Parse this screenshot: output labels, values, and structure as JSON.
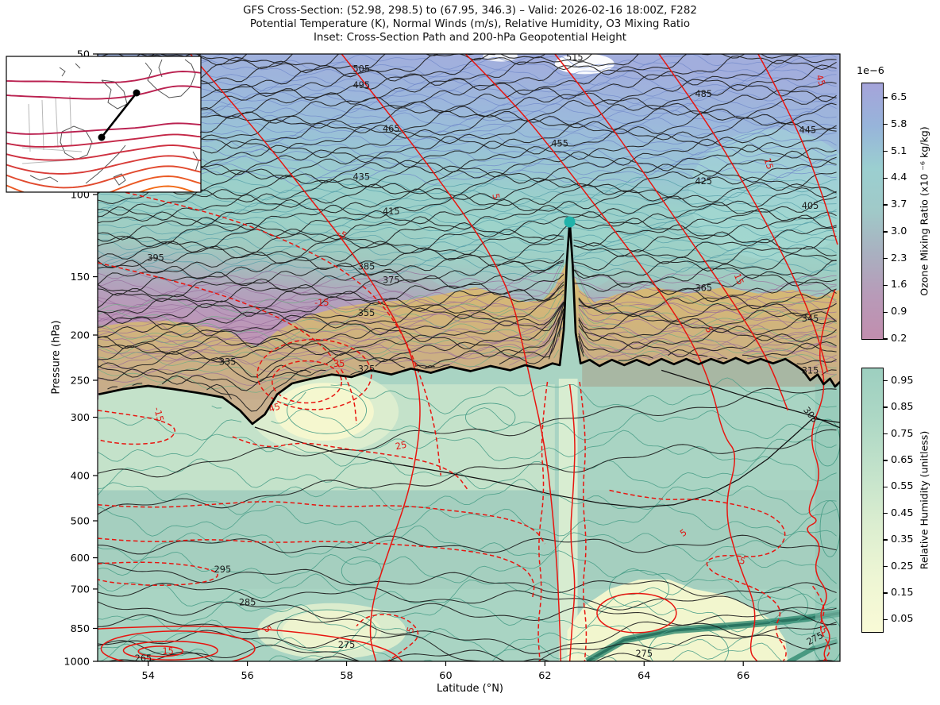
{
  "title": {
    "line1": "GFS Cross-Section: (52.98, 298.5) to (67.95, 346.3) – Valid: 2026-02-16 18:00Z, F282",
    "line2": "Potential Temperature (K), Normal Winds (m/s), Relative Humidity, O3 Mixing Ratio",
    "line3": "Inset: Cross-Section Path and 200-hPa Geopotential Height"
  },
  "axes": {
    "x_label": "Latitude (°N)",
    "y_label": "Pressure (hPa)",
    "x_ticks": [
      54,
      56,
      58,
      60,
      62,
      64,
      66
    ],
    "y_ticks": [
      50,
      100,
      150,
      200,
      250,
      300,
      400,
      500,
      600,
      700,
      850,
      1000
    ],
    "x_range": [
      52.98,
      67.95
    ],
    "y_range": [
      50,
      1000
    ],
    "y_scale": "log"
  },
  "colorbars": {
    "ozone": {
      "label": "Ozone Mixing Ratio (x10 ⁻⁶ kg/kg)",
      "offset_label": "1e−6",
      "tick_labels": [
        "6.5",
        "5.8",
        "5.1",
        "4.4",
        "3.7",
        "3.0",
        "2.3",
        "1.6",
        "0.9",
        "0.2"
      ],
      "gradient": [
        "#a5a4da",
        "#97b4da",
        "#9bcfd0",
        "#a0c9c8",
        "#a9b0c0",
        "#b89ab8",
        "#c18eae"
      ]
    },
    "rh": {
      "label": "Relative Humidity (unitless)",
      "tick_labels": [
        "0.95",
        "0.85",
        "0.75",
        "0.65",
        "0.55",
        "0.45",
        "0.35",
        "0.25",
        "0.15",
        "0.05"
      ],
      "gradient": [
        "#9dcfc0",
        "#aed8c5",
        "#c4e3cb",
        "#dceed0",
        "#eef6d4",
        "#f9fad6"
      ]
    }
  },
  "style_colors": {
    "theta_contour": "#1c1c1c",
    "wind_contour": "#e8150f",
    "rh_contour": "#4a9e88",
    "ozone_thin_blue": "#6d86c8",
    "ozone_thin_teal": "#4f9ba6",
    "ozone_thin_purple": "#97699b",
    "tan_green_thin": "#6fae85",
    "tropopause": "#000000",
    "marker": "#20b2aa",
    "strat_stops": [
      "#a2aedd",
      "#9cb8dc",
      "#99c3d6",
      "#9bd0cb",
      "#9dd1c7",
      "#a0cac0",
      "#a9b3bc",
      "#b2a2bc",
      "#bb98b9",
      "#c094b3",
      "#c18fb0"
    ],
    "strat_fracs": [
      0,
      0.16,
      0.28,
      0.41,
      0.52,
      0.61,
      0.69,
      0.74,
      0.82,
      0.91,
      1
    ],
    "tan_top": "#d7b873",
    "tan_bottom": "#c6ad8a",
    "tropo_base": "#a9d4c3",
    "dry_yellow": "#f6f8cf",
    "light_green": "#dff0d2",
    "dark_streak": "#2f8a70",
    "inset_contours": [
      "#FFB300",
      "#FFA000",
      "#FF8C00",
      "#F97B0C",
      "#F26A18",
      "#EA5924",
      "#E14A2E",
      "#D83C38",
      "#CE3040",
      "#C42747",
      "#BA2150"
    ],
    "coast": "#555555",
    "inner_borders": "#b8b8b8"
  },
  "chart_data": {
    "type": "contour-cross-section",
    "title": "GFS Cross-Section: (52.98, 298.5) to (67.95, 346.3) – Valid: 2026-02-16 18:00Z, F282",
    "x": {
      "label": "Latitude (°N)",
      "min": 52.98,
      "max": 67.95,
      "ticks": [
        54,
        56,
        58,
        60,
        62,
        64,
        66
      ]
    },
    "y": {
      "label": "Pressure (hPa)",
      "scale": "log",
      "min": 50,
      "max": 1000,
      "ticks": [
        50,
        100,
        150,
        200,
        250,
        300,
        400,
        500,
        600,
        700,
        850,
        1000
      ]
    },
    "fields": [
      {
        "name": "Potential Temperature",
        "units": "K",
        "style": "black contours",
        "interval": 5
      },
      {
        "name": "Normal Winds",
        "units": "m/s",
        "style": "red contours, negative dashed"
      },
      {
        "name": "Relative Humidity",
        "units": "unitless",
        "style": "filled yellow-green",
        "range": [
          0.05,
          0.95
        ]
      },
      {
        "name": "O3 Mixing Ratio",
        "units": "kg/kg",
        "style": "filled pink-teal-violet",
        "range": [
          2e-07,
          6.5e-06
        ]
      }
    ],
    "theta_labels": [
      {
        "t": "515",
        "lat": 62.6,
        "p": 51
      },
      {
        "t": "505",
        "lat": 58.3,
        "p": 54
      },
      {
        "t": "495",
        "lat": 58.3,
        "p": 58.5
      },
      {
        "t": "485",
        "lat": 65.2,
        "p": 61
      },
      {
        "t": "465",
        "lat": 58.9,
        "p": 72.5
      },
      {
        "t": "455",
        "lat": 62.3,
        "p": 78
      },
      {
        "t": "445",
        "lat": 67.3,
        "p": 73
      },
      {
        "t": "435",
        "lat": 58.3,
        "p": 92
      },
      {
        "t": "425",
        "lat": 65.2,
        "p": 94
      },
      {
        "t": "415",
        "lat": 58.9,
        "p": 109
      },
      {
        "t": "405",
        "lat": 67.35,
        "p": 106
      },
      {
        "t": "395",
        "lat": 54.15,
        "p": 137
      },
      {
        "t": "385",
        "lat": 58.4,
        "p": 143
      },
      {
        "t": "375",
        "lat": 58.9,
        "p": 153
      },
      {
        "t": "365",
        "lat": 65.2,
        "p": 159
      },
      {
        "t": "355",
        "lat": 58.4,
        "p": 180
      },
      {
        "t": "345",
        "lat": 67.35,
        "p": 185
      },
      {
        "t": "335",
        "lat": 55.6,
        "p": 229
      },
      {
        "t": "325",
        "lat": 58.4,
        "p": 237
      },
      {
        "t": "315",
        "lat": 67.35,
        "p": 239
      },
      {
        "t": "305",
        "lat": 67.35,
        "p": 297,
        "rot": 52
      },
      {
        "t": "295",
        "lat": 55.5,
        "p": 637
      },
      {
        "t": "285",
        "lat": 56.0,
        "p": 750
      },
      {
        "t": "275",
        "lat": 58.0,
        "p": 925
      },
      {
        "t": "275",
        "lat": 64.0,
        "p": 965
      },
      {
        "t": "275",
        "lat": 67.45,
        "p": 896,
        "rot": -28
      },
      {
        "t": "265",
        "lat": 53.9,
        "p": 988
      }
    ],
    "wind_labels": [
      {
        "t": "45",
        "lat": 67.55,
        "p": 57,
        "rot": 70
      },
      {
        "t": "15",
        "lat": 66.5,
        "p": 86,
        "rot": 72
      },
      {
        "t": "5",
        "lat": 61.0,
        "p": 101,
        "rot": 78
      },
      {
        "t": "-5",
        "lat": 57.9,
        "p": 122,
        "rot": 30
      },
      {
        "t": "15",
        "lat": 65.9,
        "p": 152,
        "rot": 68
      },
      {
        "t": "-15",
        "lat": 57.5,
        "p": 171,
        "rot": 0
      },
      {
        "t": "5",
        "lat": 65.3,
        "p": 195,
        "rot": 62
      },
      {
        "t": "35",
        "lat": 57.85,
        "p": 231,
        "rot": 0
      },
      {
        "t": "-15",
        "lat": 54.2,
        "p": 296,
        "rot": 75
      },
      {
        "t": "45",
        "lat": 56.55,
        "p": 287,
        "rot": -18
      },
      {
        "t": "25",
        "lat": 59.1,
        "p": 346,
        "rot": -12
      },
      {
        "t": "15",
        "lat": 54.4,
        "p": 954,
        "rot": 0
      },
      {
        "t": "5",
        "lat": 56.4,
        "p": 855,
        "rot": 55
      },
      {
        "t": "5",
        "lat": 59.3,
        "p": 857,
        "rot": -72
      },
      {
        "t": "5",
        "lat": 64.8,
        "p": 532,
        "rot": -35
      },
      {
        "t": "-5",
        "lat": 65.95,
        "p": 610,
        "rot": 15
      },
      {
        "t": "-5",
        "lat": 67.6,
        "p": 855,
        "rot": 60
      }
    ],
    "tropopause_path": [
      [
        53.0,
        268
      ],
      [
        53.5,
        261
      ],
      [
        54.0,
        257
      ],
      [
        54.5,
        261
      ],
      [
        55.0,
        266
      ],
      [
        55.5,
        272
      ],
      [
        55.85,
        290
      ],
      [
        56.1,
        310
      ],
      [
        56.35,
        296
      ],
      [
        56.6,
        268
      ],
      [
        56.9,
        254
      ],
      [
        57.3,
        248
      ],
      [
        57.7,
        243
      ],
      [
        58.1,
        246
      ],
      [
        58.5,
        238
      ],
      [
        58.9,
        243
      ],
      [
        59.3,
        236
      ],
      [
        59.7,
        241
      ],
      [
        60.1,
        234
      ],
      [
        60.5,
        239
      ],
      [
        60.9,
        233
      ],
      [
        61.3,
        238
      ],
      [
        61.6,
        232
      ],
      [
        61.9,
        236
      ],
      [
        62.15,
        230
      ],
      [
        62.3,
        232
      ],
      [
        62.38,
        195
      ],
      [
        62.44,
        140
      ],
      [
        62.5,
        114
      ],
      [
        62.56,
        142
      ],
      [
        62.62,
        198
      ],
      [
        62.72,
        230
      ],
      [
        62.9,
        226
      ],
      [
        63.1,
        233
      ],
      [
        63.35,
        226
      ],
      [
        63.6,
        232
      ],
      [
        63.85,
        226
      ],
      [
        64.1,
        232
      ],
      [
        64.35,
        225
      ],
      [
        64.6,
        231
      ],
      [
        64.85,
        225
      ],
      [
        65.1,
        231
      ],
      [
        65.35,
        225
      ],
      [
        65.6,
        230
      ],
      [
        65.85,
        224
      ],
      [
        66.1,
        230
      ],
      [
        66.35,
        225
      ],
      [
        66.6,
        230
      ],
      [
        66.85,
        225
      ],
      [
        67.05,
        232
      ],
      [
        67.2,
        238
      ],
      [
        67.35,
        250
      ],
      [
        67.5,
        243
      ],
      [
        67.62,
        255
      ],
      [
        67.75,
        248
      ],
      [
        67.85,
        258
      ],
      [
        67.95,
        252
      ]
    ],
    "marker": {
      "lat": 62.5,
      "pressure": 114.5
    },
    "inset": {
      "description": "Cross-section path and 200-hPa geopotential height",
      "path_dots": [
        [
          128,
          173
        ],
        [
          172,
          117
        ]
      ]
    }
  }
}
